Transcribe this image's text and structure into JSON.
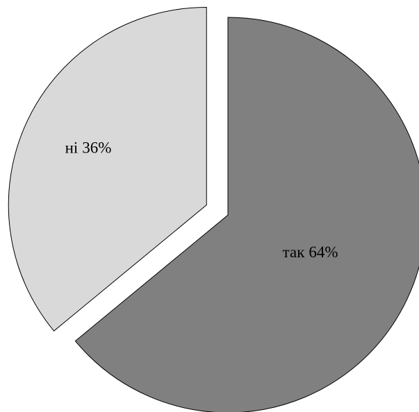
{
  "chart_data": {
    "type": "pie",
    "categories": [
      "так",
      "ні"
    ],
    "values": [
      64,
      36
    ],
    "value_labels": [
      "64%",
      "36%"
    ],
    "colors": [
      "#808080",
      "#d9d9d9"
    ]
  }
}
